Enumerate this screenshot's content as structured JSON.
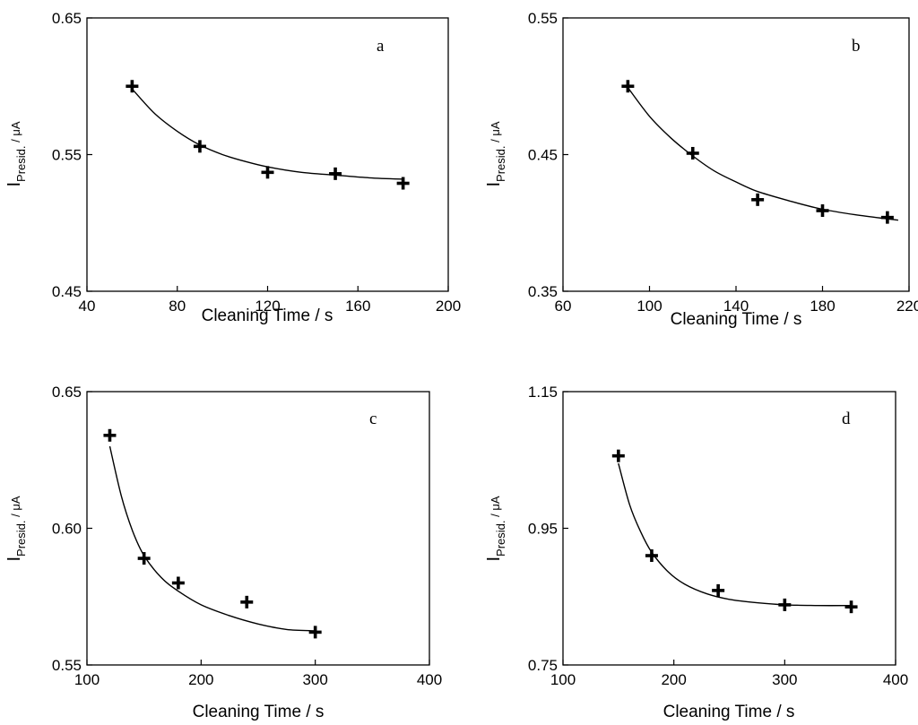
{
  "chart_data": [
    {
      "type": "scatter",
      "panel_label": "a",
      "xlabel": "Cleaning Time / s",
      "ylabel_main": "I",
      "ylabel_sub": "Presid.",
      "ylabel_unit": " / μA",
      "xlim": [
        40,
        200
      ],
      "ylim": [
        0.45,
        0.65
      ],
      "xticks": [
        "40",
        "80",
        "120",
        "160",
        "200"
      ],
      "yticks": [
        "0.45",
        "0.55",
        "0.65"
      ],
      "points": [
        {
          "x": 60,
          "y": 0.6
        },
        {
          "x": 90,
          "y": 0.556
        },
        {
          "x": 120,
          "y": 0.537
        },
        {
          "x": 150,
          "y": 0.536
        },
        {
          "x": 180,
          "y": 0.529
        }
      ],
      "fit_curve": [
        [
          60,
          0.598
        ],
        [
          70,
          0.58
        ],
        [
          80,
          0.567
        ],
        [
          90,
          0.557
        ],
        [
          100,
          0.55
        ],
        [
          110,
          0.545
        ],
        [
          120,
          0.541
        ],
        [
          135,
          0.537
        ],
        [
          150,
          0.535
        ],
        [
          165,
          0.533
        ],
        [
          180,
          0.532
        ]
      ]
    },
    {
      "type": "scatter",
      "panel_label": "b",
      "xlabel": "Cleaning Time / s",
      "ylabel_main": "I",
      "ylabel_sub": "Presid.",
      "ylabel_unit": " / μA",
      "xlim": [
        60,
        220
      ],
      "ylim": [
        0.35,
        0.55
      ],
      "xticks": [
        "60",
        "100",
        "140",
        "180",
        "220"
      ],
      "yticks": [
        "0.35",
        "0.45",
        "0.55"
      ],
      "points": [
        {
          "x": 90,
          "y": 0.5
        },
        {
          "x": 120,
          "y": 0.451
        },
        {
          "x": 150,
          "y": 0.417
        },
        {
          "x": 180,
          "y": 0.409
        },
        {
          "x": 210,
          "y": 0.404
        }
      ],
      "fit_curve": [
        [
          90,
          0.499
        ],
        [
          100,
          0.478
        ],
        [
          110,
          0.462
        ],
        [
          120,
          0.449
        ],
        [
          130,
          0.438
        ],
        [
          140,
          0.43
        ],
        [
          150,
          0.423
        ],
        [
          165,
          0.416
        ],
        [
          180,
          0.41
        ],
        [
          195,
          0.406
        ],
        [
          210,
          0.403
        ],
        [
          215,
          0.402
        ]
      ]
    },
    {
      "type": "scatter",
      "panel_label": "c",
      "xlabel": "Cleaning Time / s",
      "ylabel_main": "I",
      "ylabel_sub": "Presid.",
      "ylabel_unit": " / μA",
      "xlim": [
        100,
        400
      ],
      "ylim": [
        0.55,
        0.65
      ],
      "xticks": [
        "100",
        "200",
        "300",
        "400"
      ],
      "yticks": [
        "0.55",
        "0.60",
        "0.65"
      ],
      "points": [
        {
          "x": 120,
          "y": 0.634
        },
        {
          "x": 150,
          "y": 0.589
        },
        {
          "x": 180,
          "y": 0.58
        },
        {
          "x": 240,
          "y": 0.573
        },
        {
          "x": 300,
          "y": 0.562
        }
      ],
      "fit_curve": [
        [
          120,
          0.63
        ],
        [
          130,
          0.612
        ],
        [
          140,
          0.599
        ],
        [
          150,
          0.59
        ],
        [
          165,
          0.582
        ],
        [
          180,
          0.577
        ],
        [
          200,
          0.572
        ],
        [
          225,
          0.568
        ],
        [
          250,
          0.565
        ],
        [
          275,
          0.563
        ],
        [
          300,
          0.5625
        ]
      ]
    },
    {
      "type": "scatter",
      "panel_label": "d",
      "xlabel": "Cleaning Time / s",
      "ylabel_main": "I",
      "ylabel_sub": "Presid.",
      "ylabel_unit": " / μA",
      "xlim": [
        100,
        400
      ],
      "ylim": [
        0.75,
        1.15
      ],
      "xticks": [
        "100",
        "200",
        "300",
        "400"
      ],
      "yticks": [
        "0.75",
        "0.95",
        "1.15"
      ],
      "points": [
        {
          "x": 150,
          "y": 1.056
        },
        {
          "x": 180,
          "y": 0.91
        },
        {
          "x": 240,
          "y": 0.859
        },
        {
          "x": 300,
          "y": 0.838
        },
        {
          "x": 360,
          "y": 0.835
        }
      ],
      "fit_curve": [
        [
          150,
          1.045
        ],
        [
          160,
          0.985
        ],
        [
          170,
          0.945
        ],
        [
          180,
          0.915
        ],
        [
          195,
          0.886
        ],
        [
          210,
          0.868
        ],
        [
          230,
          0.854
        ],
        [
          250,
          0.846
        ],
        [
          275,
          0.841
        ],
        [
          300,
          0.838
        ],
        [
          330,
          0.837
        ],
        [
          360,
          0.837
        ]
      ]
    }
  ]
}
